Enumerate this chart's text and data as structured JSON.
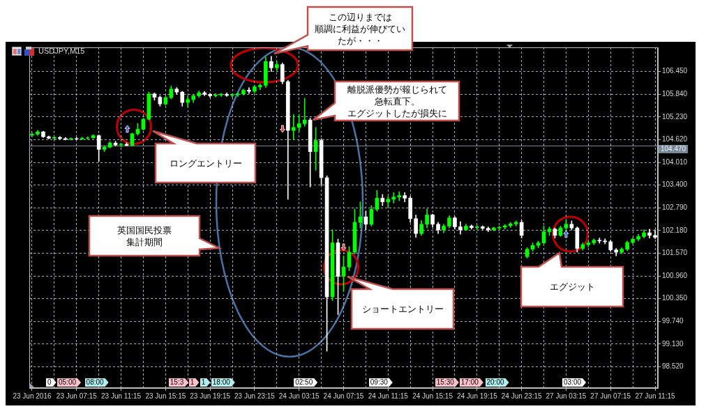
{
  "chart_data": {
    "type": "candlestick",
    "title": "USDJPY,M15",
    "categories": [
      "23 Jun 2016",
      null,
      null,
      null,
      null,
      null,
      null,
      null,
      "23 Jun 07:15",
      null,
      null,
      null,
      null,
      null,
      null,
      null,
      "23 Jun 11:15",
      null,
      null,
      null,
      null,
      null,
      null,
      null,
      "23 Jun 15:15",
      null,
      null,
      null,
      null,
      null,
      null,
      null,
      "23 Jun 19:15",
      null,
      null,
      null,
      null,
      null,
      null,
      null,
      "23 Jun 23:15",
      null,
      null,
      null,
      null,
      null,
      null,
      null,
      "24 Jun 03:15",
      null,
      null,
      null,
      null,
      null,
      null,
      null,
      "24 Jun 07:15",
      null,
      null,
      null,
      null,
      null,
      null,
      null,
      "24 Jun 11:15",
      null,
      null,
      null,
      null,
      null,
      null,
      null,
      "24 Jun 15:15",
      null,
      null,
      null,
      null,
      null,
      null,
      null,
      "24 Jun 19:15",
      null,
      null,
      null,
      null,
      null,
      null,
      null,
      "24 Jun 23:15",
      null,
      null,
      null,
      null,
      null,
      null,
      null,
      "27 Jun 03:15",
      null,
      null,
      null,
      null,
      null,
      null,
      null,
      "27 Jun 07:15",
      null,
      null,
      null,
      null,
      null,
      null,
      null,
      "27 Jun 11:15"
    ],
    "ohlc": [
      [
        104.74,
        104.8,
        104.7,
        104.77
      ],
      [
        104.77,
        104.87,
        104.74,
        104.83
      ],
      [
        104.83,
        104.85,
        104.68,
        104.7
      ],
      [
        104.7,
        104.72,
        104.64,
        104.66
      ],
      [
        104.66,
        104.7,
        104.63,
        104.68
      ],
      [
        104.68,
        104.71,
        104.63,
        104.65
      ],
      [
        104.65,
        104.68,
        104.61,
        104.63
      ],
      [
        104.63,
        104.67,
        104.61,
        104.65
      ],
      [
        104.65,
        104.68,
        104.62,
        104.64
      ],
      [
        104.64,
        104.69,
        104.62,
        104.66
      ],
      [
        104.66,
        104.7,
        104.63,
        104.67
      ],
      [
        104.67,
        104.76,
        104.65,
        104.73
      ],
      [
        104.73,
        104.75,
        104.04,
        104.36
      ],
      [
        104.36,
        104.46,
        104.3,
        104.42
      ],
      [
        104.42,
        104.57,
        104.4,
        104.53
      ],
      [
        104.53,
        104.58,
        104.45,
        104.48
      ],
      [
        104.48,
        104.53,
        104.43,
        104.5
      ],
      [
        104.5,
        104.54,
        104.45,
        104.47
      ],
      [
        104.47,
        104.8,
        104.45,
        104.78
      ],
      [
        104.78,
        105.06,
        104.74,
        104.9
      ],
      [
        104.9,
        105.2,
        104.88,
        105.17
      ],
      [
        105.17,
        105.9,
        105.15,
        105.85
      ],
      [
        105.85,
        105.88,
        105.68,
        105.76
      ],
      [
        105.76,
        105.8,
        105.52,
        105.58
      ],
      [
        105.58,
        105.8,
        105.55,
        105.75
      ],
      [
        105.75,
        106.06,
        105.72,
        105.98
      ],
      [
        105.98,
        106.02,
        105.85,
        105.9
      ],
      [
        105.9,
        105.92,
        105.52,
        105.62
      ],
      [
        105.62,
        105.8,
        105.5,
        105.7
      ],
      [
        105.7,
        105.84,
        105.62,
        105.8
      ],
      [
        105.8,
        105.93,
        105.76,
        105.88
      ],
      [
        105.88,
        105.92,
        105.8,
        105.84
      ],
      [
        105.84,
        105.87,
        105.76,
        105.8
      ],
      [
        105.8,
        105.86,
        105.77,
        105.82
      ],
      [
        105.82,
        105.87,
        105.78,
        105.84
      ],
      [
        105.84,
        105.88,
        105.78,
        105.81
      ],
      [
        105.81,
        105.86,
        105.76,
        105.83
      ],
      [
        105.83,
        105.88,
        105.78,
        105.85
      ],
      [
        105.85,
        105.98,
        105.82,
        105.95
      ],
      [
        105.95,
        106.02,
        105.86,
        105.92
      ],
      [
        105.92,
        106.08,
        105.88,
        106.04
      ],
      [
        106.04,
        106.12,
        105.96,
        106.08
      ],
      [
        106.08,
        106.84,
        106.02,
        106.72
      ],
      [
        106.72,
        106.86,
        106.45,
        106.55
      ],
      [
        106.55,
        106.72,
        106.48,
        106.64
      ],
      [
        106.64,
        106.68,
        106.12,
        106.18
      ],
      [
        106.18,
        106.22,
        103.02,
        104.87
      ],
      [
        104.87,
        105.3,
        104.62,
        104.95
      ],
      [
        104.95,
        105.3,
        104.85,
        105.05
      ],
      [
        105.05,
        105.73,
        104.98,
        105.15
      ],
      [
        105.15,
        105.2,
        103.35,
        104.3
      ],
      [
        104.3,
        104.95,
        103.8,
        104.6
      ],
      [
        104.6,
        104.65,
        103.39,
        103.6
      ],
      [
        103.6,
        103.65,
        98.94,
        100.4
      ],
      [
        100.4,
        102.2,
        100.3,
        101.85
      ],
      [
        101.85,
        101.95,
        99.92,
        100.95
      ],
      [
        100.95,
        101.5,
        100.55,
        101.2
      ],
      [
        101.2,
        101.75,
        101.1,
        101.6
      ],
      [
        101.6,
        102.76,
        101.55,
        102.4
      ],
      [
        102.4,
        102.95,
        102.25,
        102.55
      ],
      [
        102.55,
        102.7,
        102.2,
        102.35
      ],
      [
        102.35,
        102.85,
        102.3,
        102.75
      ],
      [
        102.75,
        103.26,
        102.7,
        103.05
      ],
      [
        103.05,
        103.15,
        102.85,
        102.95
      ],
      [
        102.95,
        103.1,
        102.8,
        103.02
      ],
      [
        103.02,
        103.2,
        102.92,
        103.08
      ],
      [
        103.08,
        103.22,
        102.98,
        103.12
      ],
      [
        103.12,
        103.2,
        102.95,
        103.05
      ],
      [
        103.05,
        103.1,
        102.4,
        102.5
      ],
      [
        102.5,
        102.6,
        102.0,
        102.1
      ],
      [
        102.1,
        102.45,
        102.05,
        102.35
      ],
      [
        102.35,
        102.76,
        102.25,
        102.6
      ],
      [
        102.6,
        102.62,
        102.28,
        102.35
      ],
      [
        102.35,
        102.4,
        102.1,
        102.2
      ],
      [
        102.2,
        102.35,
        102.12,
        102.3
      ],
      [
        102.3,
        102.58,
        102.25,
        102.52
      ],
      [
        102.52,
        102.55,
        102.22,
        102.28
      ],
      [
        102.28,
        102.42,
        102.08,
        102.2
      ],
      [
        102.2,
        102.35,
        102.18,
        102.3
      ],
      [
        102.3,
        102.33,
        102.22,
        102.26
      ],
      [
        102.26,
        102.32,
        102.2,
        102.28
      ],
      [
        102.28,
        102.31,
        102.21,
        102.24
      ],
      [
        102.24,
        102.28,
        102.15,
        102.2
      ],
      [
        102.2,
        102.27,
        102.17,
        102.25
      ],
      [
        102.25,
        102.3,
        102.2,
        102.27
      ],
      [
        102.27,
        102.34,
        102.22,
        102.31
      ],
      [
        102.31,
        102.4,
        102.26,
        102.36
      ],
      [
        102.36,
        102.44,
        102.3,
        102.4
      ],
      [
        102.4,
        102.45,
        101.98,
        102.05
      ],
      [
        101.48,
        101.72,
        101.44,
        101.68
      ],
      [
        101.68,
        101.85,
        101.62,
        101.78
      ],
      [
        101.78,
        101.9,
        101.72,
        101.85
      ],
      [
        101.85,
        102.3,
        101.82,
        102.15
      ],
      [
        102.15,
        102.28,
        102.05,
        102.22
      ],
      [
        102.22,
        102.25,
        101.98,
        102.05
      ],
      [
        102.05,
        102.3,
        102.02,
        102.25
      ],
      [
        102.25,
        102.46,
        102.18,
        102.35
      ],
      [
        102.35,
        102.44,
        102.2,
        102.25
      ],
      [
        102.25,
        102.28,
        101.6,
        101.7
      ],
      [
        101.7,
        101.85,
        101.65,
        101.8
      ],
      [
        101.8,
        101.9,
        101.74,
        101.85
      ],
      [
        101.85,
        101.96,
        101.8,
        101.92
      ],
      [
        101.92,
        101.98,
        101.84,
        101.9
      ],
      [
        101.9,
        101.96,
        101.82,
        101.88
      ],
      [
        101.88,
        101.92,
        101.62,
        101.66
      ],
      [
        101.66,
        101.7,
        101.5,
        101.6
      ],
      [
        101.6,
        101.72,
        101.56,
        101.68
      ],
      [
        101.68,
        101.9,
        101.64,
        101.86
      ],
      [
        101.86,
        101.98,
        101.82,
        101.95
      ],
      [
        101.95,
        102.08,
        101.9,
        102.02
      ],
      [
        102.02,
        102.2,
        101.98,
        102.12
      ],
      [
        102.12,
        102.22,
        101.98,
        102.05
      ],
      [
        102.05,
        102.2,
        101.96,
        102.0
      ]
    ],
    "colors": [
      "#00ff00",
      "#00ff00",
      "#ffffff",
      "#ffffff",
      "#00ff00",
      "#ffffff",
      "#ffffff",
      "#00ff00",
      "#ffffff",
      "#00ff00",
      "#00ff00",
      "#00ff00",
      "#ffffff",
      "#00ff00",
      "#00ff00",
      "#ffffff",
      "#00ff00",
      "#ffffff",
      "#00ff00",
      "#00ff00",
      "#00ff00",
      "#00ff00",
      "#ffffff",
      "#ffffff",
      "#00ff00",
      "#00ff00",
      "#ffffff",
      "#ffffff",
      "#00ff00",
      "#00ff00",
      "#00ff00",
      "#ffffff",
      "#ffffff",
      "#00ff00",
      "#00ff00",
      "#ffffff",
      "#00ff00",
      "#00ff00",
      "#00ff00",
      "#ffffff",
      "#00ff00",
      "#00ff00",
      "#00ff00",
      "#ffffff",
      "#00ff00",
      "#ffffff",
      "#ffffff",
      "#00ff00",
      "#00ff00",
      "#00ff00",
      "#ffffff",
      "#00ff00",
      "#ffffff",
      "#ffffff",
      "#00ff00",
      "#ffffff",
      "#00ff00",
      "#00ff00",
      "#00ff00",
      "#00ff00",
      "#ffffff",
      "#00ff00",
      "#00ff00",
      "#ffffff",
      "#00ff00",
      "#00ff00",
      "#00ff00",
      "#ffffff",
      "#ffffff",
      "#ffffff",
      "#00ff00",
      "#00ff00",
      "#ffffff",
      "#ffffff",
      "#00ff00",
      "#00ff00",
      "#ffffff",
      "#ffffff",
      "#00ff00",
      "#ffffff",
      "#00ff00",
      "#ffffff",
      "#ffffff",
      "#00ff00",
      "#00ff00",
      "#00ff00",
      "#00ff00",
      "#00ff00",
      "#ffffff",
      "#00ff00",
      "#00ff00",
      "#00ff00",
      "#00ff00",
      "#00ff00",
      "#ffffff",
      "#00ff00",
      "#00ff00",
      "#ffffff",
      "#ffffff",
      "#00ff00",
      "#00ff00",
      "#00ff00",
      "#ffffff",
      "#ffffff",
      "#ffffff",
      "#ffffff",
      "#00ff00",
      "#00ff00",
      "#00ff00",
      "#00ff00",
      "#00ff00",
      "#ffffff",
      "#ffffff"
    ],
    "ylim": [
      97.95,
      107.1
    ],
    "yticks": [
      {
        "value": 98.52,
        "label": "98.520"
      },
      {
        "value": 99.13,
        "label": "99.130"
      },
      {
        "value": 99.74,
        "label": "99.740"
      },
      {
        "value": 100.35,
        "label": "100.350"
      },
      {
        "value": 100.96,
        "label": "100.960"
      },
      {
        "value": 101.57,
        "label": "101.570"
      },
      {
        "value": 102.18,
        "label": "102.180"
      },
      {
        "value": 102.79,
        "label": "102.790"
      },
      {
        "value": 103.4,
        "label": "103.400"
      },
      {
        "value": 104.01,
        "label": "104.010"
      },
      {
        "value": 104.62,
        "label": "104.620"
      },
      {
        "value": 105.23,
        "label": "105.230"
      },
      {
        "value": 105.84,
        "label": "105.840"
      },
      {
        "value": 106.45,
        "label": "106.450"
      }
    ],
    "grid": true,
    "ref_lines": [
      {
        "axis": "y",
        "value": 104.47,
        "label": "104.470",
        "color": "#778899"
      }
    ],
    "annotations": [
      "この辺りまでは順調に利益が伸びていたが・・・",
      "離脱派優勢が報じられて急転直下。エグジットしたが損失に",
      "ロングエントリー",
      "英国国民投票集計期間",
      "ショートエントリー",
      "エグジット",
      "0",
      "05:00",
      "08:00",
      "15:3",
      "1",
      "1",
      "18:00",
      "02:50",
      "09:30",
      "15:30",
      "17:00",
      "20:00",
      "03:00"
    ]
  }
}
